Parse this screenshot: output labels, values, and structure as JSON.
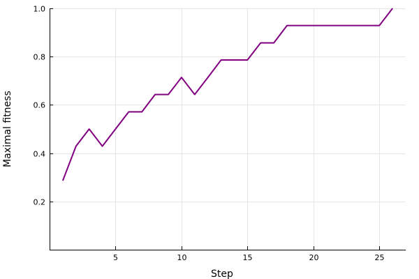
{
  "chart_data": {
    "type": "line",
    "title": "",
    "xlabel": "Step",
    "ylabel": "Maximal fitness",
    "xlim": [
      0,
      27
    ],
    "ylim": [
      0,
      1.0
    ],
    "x_ticks": [
      5,
      10,
      15,
      20,
      25
    ],
    "y_ticks": [
      0.2,
      0.4,
      0.6,
      0.8,
      1.0
    ],
    "x_tick_labels": [
      "5",
      "10",
      "15",
      "20",
      "25"
    ],
    "y_tick_labels": [
      "0.2",
      "0.4",
      "0.6",
      "0.8",
      "1.0"
    ],
    "grid": true,
    "legend": "none",
    "series": [
      {
        "color": "#800080",
        "x": [
          1,
          2,
          3,
          4,
          5,
          6,
          7,
          8,
          9,
          10,
          11,
          12,
          13,
          14,
          15,
          16,
          17,
          18,
          19,
          20,
          21,
          22,
          23,
          24,
          25,
          26
        ],
        "values": [
          0.286,
          0.429,
          0.5,
          0.429,
          0.5,
          0.571,
          0.571,
          0.643,
          0.643,
          0.714,
          0.643,
          0.714,
          0.786,
          0.786,
          0.786,
          0.857,
          0.857,
          0.929,
          0.929,
          0.929,
          0.929,
          0.929,
          0.929,
          0.929,
          0.929,
          1.0
        ]
      }
    ]
  }
}
